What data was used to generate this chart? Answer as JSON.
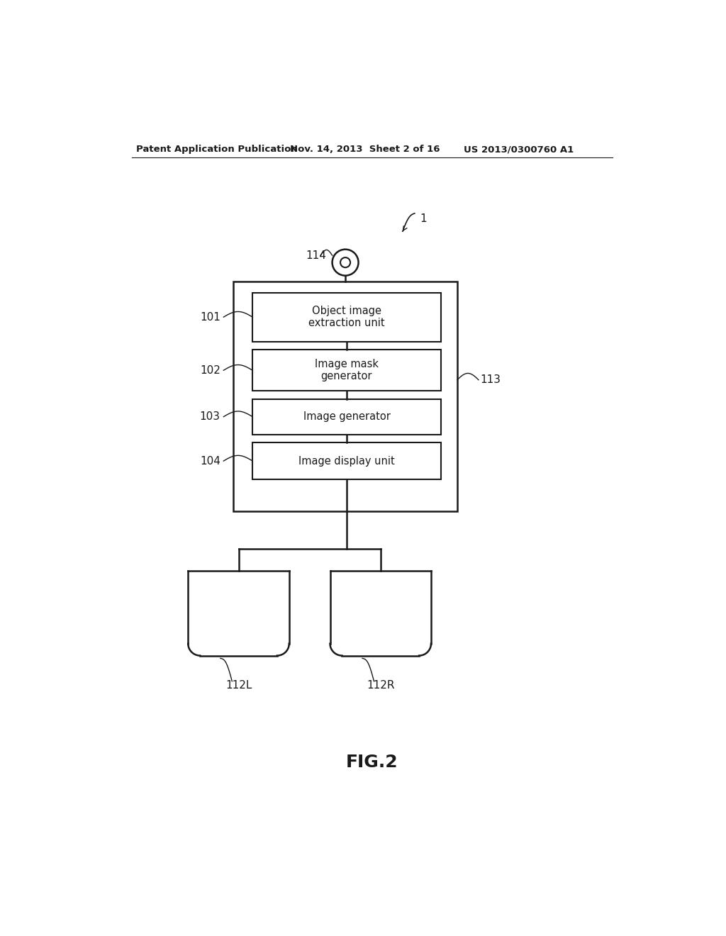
{
  "bg_color": "#ffffff",
  "header_left": "Patent Application Publication",
  "header_mid": "Nov. 14, 2013  Sheet 2 of 16",
  "header_right": "US 2013/0300760 A1",
  "figure_label": "FIG.2",
  "ref_1": "1",
  "ref_113": "113",
  "ref_114": "114",
  "ref_101": "101",
  "ref_102": "102",
  "ref_103": "103",
  "ref_104": "104",
  "ref_112L": "112L",
  "ref_112R": "112R",
  "box_101_text": "Object image\nextraction unit",
  "box_102_text": "Image mask\ngenerator",
  "box_103_text": "Image generator",
  "box_104_text": "Image display unit",
  "line_color": "#1a1a1a",
  "text_color": "#1a1a1a"
}
